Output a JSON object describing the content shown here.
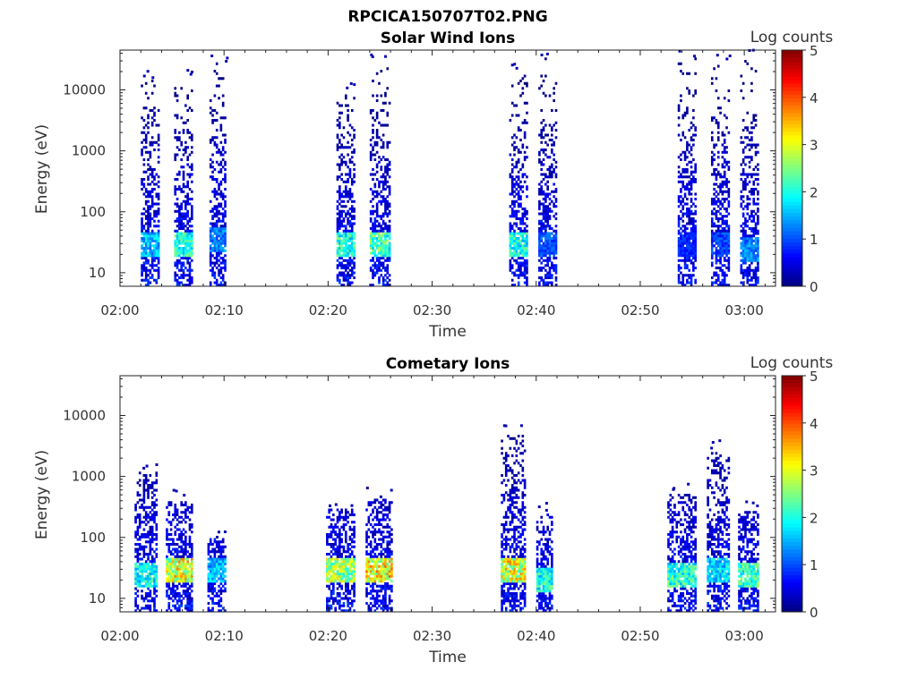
{
  "figure_title": "RPCICA150707T02.PNG",
  "chart_data": [
    {
      "type": "heatmap",
      "title": "Solar Wind Ions",
      "xlabel": "Time",
      "ylabel": "Energy (eV)",
      "yscale": "log",
      "ylim": [
        6,
        45000
      ],
      "xlim_minutes": [
        0,
        63
      ],
      "x_ticks": [
        "02:00",
        "02:10",
        "02:20",
        "02:30",
        "02:40",
        "02:50",
        "03:00"
      ],
      "x_tick_minutes": [
        0,
        10,
        20,
        30,
        40,
        50,
        60
      ],
      "y_ticks": [
        "10",
        "100",
        "1000",
        "10000"
      ],
      "y_tick_values": [
        10,
        100,
        1000,
        10000
      ],
      "colorbar": {
        "label": "Log counts",
        "min": 0,
        "max": 5,
        "ticks": [
          "0",
          "1",
          "2",
          "3",
          "4",
          "5"
        ],
        "colormap": "jet"
      },
      "grid": false,
      "bursts": [
        {
          "start": 2.0,
          "end": 3.8,
          "emax": 15000,
          "peak_energy": 30,
          "peak_log_counts": 2.0
        },
        {
          "start": 5.2,
          "end": 7.0,
          "emax": 15000,
          "peak_energy": 30,
          "peak_log_counts": 2.6
        },
        {
          "start": 8.6,
          "end": 10.2,
          "emax": 28000,
          "peak_energy": 35,
          "peak_log_counts": 1.6
        },
        {
          "start": 20.8,
          "end": 22.6,
          "emax": 9000,
          "peak_energy": 30,
          "peak_log_counts": 2.6
        },
        {
          "start": 24.0,
          "end": 26.0,
          "emax": 25000,
          "peak_energy": 30,
          "peak_log_counts": 2.8
        },
        {
          "start": 37.4,
          "end": 39.2,
          "emax": 18000,
          "peak_energy": 30,
          "peak_log_counts": 2.5
        },
        {
          "start": 40.2,
          "end": 42.0,
          "emax": 35000,
          "peak_energy": 30,
          "peak_log_counts": 1.3
        },
        {
          "start": 53.6,
          "end": 55.4,
          "emax": 33000,
          "peak_energy": 30,
          "peak_log_counts": 1.0
        },
        {
          "start": 56.8,
          "end": 58.6,
          "emax": 25000,
          "peak_energy": 30,
          "peak_log_counts": 1.2
        },
        {
          "start": 59.6,
          "end": 61.4,
          "emax": 33000,
          "peak_energy": 25,
          "peak_log_counts": 1.6
        }
      ]
    },
    {
      "type": "heatmap",
      "title": "Cometary Ions",
      "xlabel": "Time",
      "ylabel": "Energy (eV)",
      "yscale": "log",
      "ylim": [
        6,
        45000
      ],
      "xlim_minutes": [
        0,
        63
      ],
      "x_ticks": [
        "02:00",
        "02:10",
        "02:20",
        "02:30",
        "02:40",
        "02:50",
        "03:00"
      ],
      "x_tick_minutes": [
        0,
        10,
        20,
        30,
        40,
        50,
        60
      ],
      "y_ticks": [
        "10",
        "100",
        "1000",
        "10000"
      ],
      "y_tick_values": [
        10,
        100,
        1000,
        10000
      ],
      "colorbar": {
        "label": "Log counts",
        "min": 0,
        "max": 5,
        "ticks": [
          "0",
          "1",
          "2",
          "3",
          "4",
          "5"
        ],
        "colormap": "jet"
      },
      "grid": false,
      "bursts": [
        {
          "start": 1.4,
          "end": 3.6,
          "emax": 1200,
          "peak_energy": 25,
          "peak_log_counts": 2.4
        },
        {
          "start": 4.4,
          "end": 7.0,
          "emax": 400,
          "peak_energy": 30,
          "peak_log_counts": 3.8
        },
        {
          "start": 8.4,
          "end": 10.2,
          "emax": 100,
          "peak_energy": 30,
          "peak_log_counts": 2.0
        },
        {
          "start": 19.8,
          "end": 22.6,
          "emax": 300,
          "peak_energy": 30,
          "peak_log_counts": 3.4
        },
        {
          "start": 23.6,
          "end": 26.2,
          "emax": 450,
          "peak_energy": 30,
          "peak_log_counts": 4.0
        },
        {
          "start": 36.6,
          "end": 39.0,
          "emax": 4800,
          "peak_energy": 30,
          "peak_log_counts": 3.8
        },
        {
          "start": 40.0,
          "end": 41.6,
          "emax": 250,
          "peak_energy": 20,
          "peak_log_counts": 2.6
        },
        {
          "start": 52.6,
          "end": 55.4,
          "emax": 500,
          "peak_energy": 25,
          "peak_log_counts": 2.6
        },
        {
          "start": 56.4,
          "end": 58.6,
          "emax": 2600,
          "peak_energy": 30,
          "peak_log_counts": 2.2
        },
        {
          "start": 59.4,
          "end": 61.4,
          "emax": 280,
          "peak_energy": 25,
          "peak_log_counts": 2.8
        }
      ]
    }
  ]
}
